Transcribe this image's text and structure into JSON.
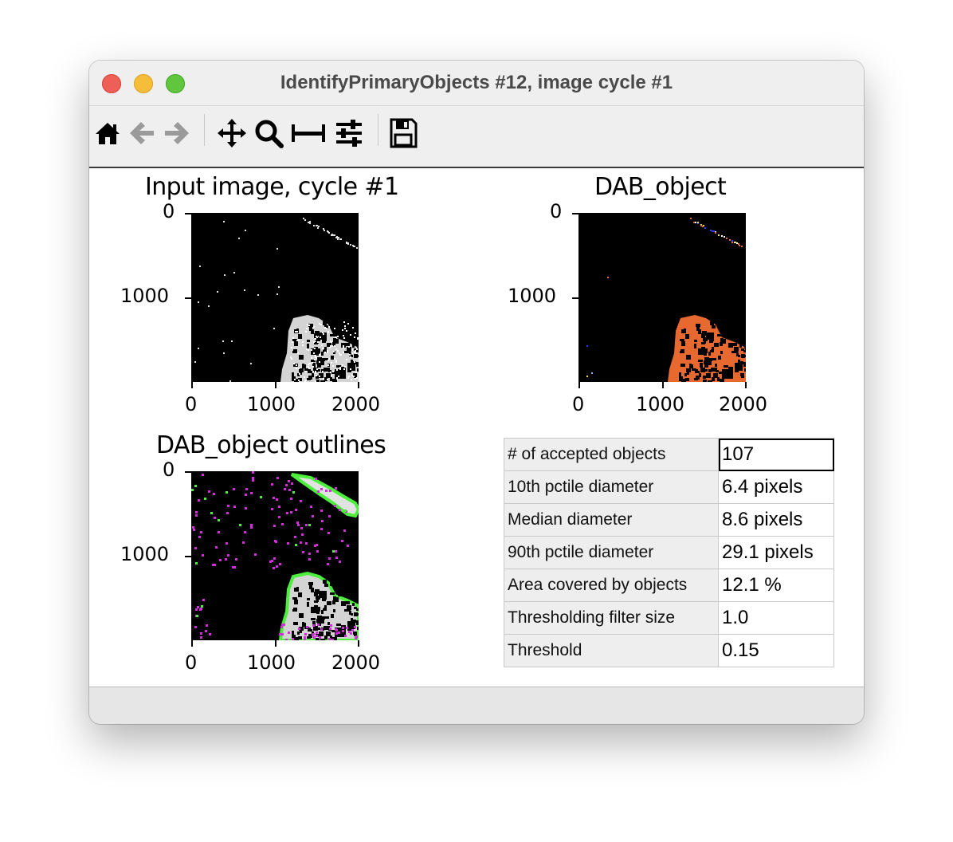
{
  "window": {
    "title": "IdentifyPrimaryObjects #12, image cycle #1"
  },
  "toolbar": {
    "items": [
      {
        "name": "home-icon"
      },
      {
        "name": "back-arrow-icon"
      },
      {
        "name": "forward-arrow-icon"
      },
      {
        "name": "pan-icon"
      },
      {
        "name": "zoom-icon"
      },
      {
        "name": "subplots-icon"
      },
      {
        "name": "configure-icon"
      },
      {
        "name": "save-icon"
      }
    ]
  },
  "plots": {
    "input": {
      "title": "Input image, cycle #1",
      "xticks": [
        "0",
        "1000",
        "2000"
      ],
      "yticks": [
        "0",
        "1000"
      ]
    },
    "dab": {
      "title": "DAB_object",
      "xticks": [
        "0",
        "1000",
        "2000"
      ],
      "yticks": [
        "0",
        "1000"
      ]
    },
    "outlines": {
      "title": "DAB_object outlines",
      "xticks": [
        "0",
        "1000",
        "2000"
      ],
      "yticks": [
        "0",
        "1000"
      ]
    }
  },
  "stats": {
    "rows": [
      {
        "label": "# of accepted objects",
        "value": "107"
      },
      {
        "label": "10th pctile diameter",
        "value": "6.4 pixels"
      },
      {
        "label": "Median diameter",
        "value": "8.6 pixels"
      },
      {
        "label": "90th pctile diameter",
        "value": "29.1 pixels"
      },
      {
        "label": "Area covered by objects",
        "value": "12.1 %"
      },
      {
        "label": "Thresholding filter size",
        "value": "1.0"
      },
      {
        "label": "Threshold",
        "value": "0.15"
      }
    ]
  },
  "colors": {
    "object_fill": "#e8692f",
    "outline_green": "#4cf03c",
    "outline_magenta": "#d62bdc"
  }
}
